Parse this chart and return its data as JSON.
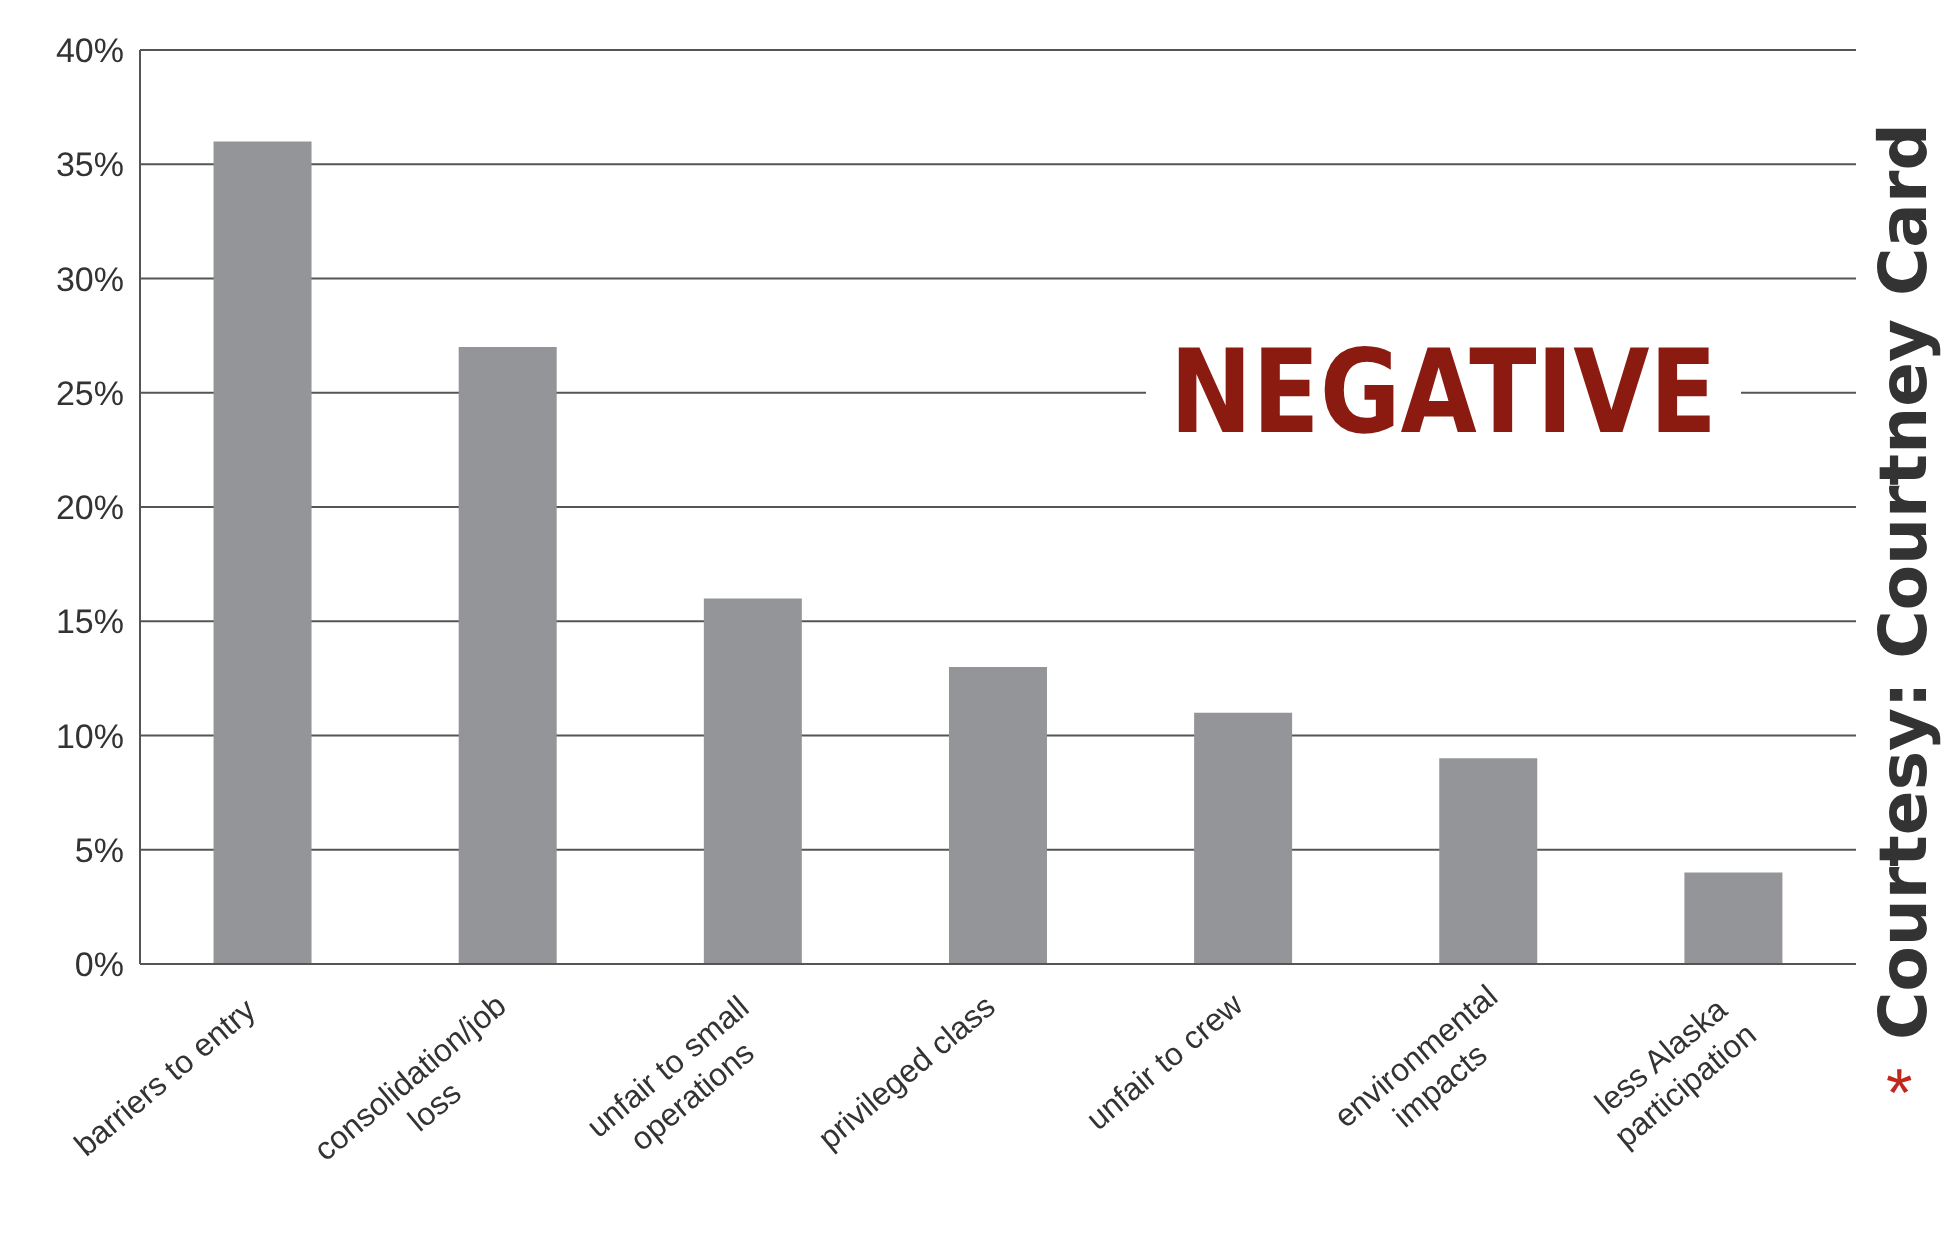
{
  "chart_data": {
    "type": "bar",
    "categories": [
      "barriers to entry",
      "consolidation/job loss",
      "unfair to small operations",
      "privileged class",
      "unfair to crew",
      "environmental impacts",
      "less Alaska participation"
    ],
    "values": [
      36,
      27,
      16,
      13,
      11,
      9,
      4
    ],
    "color": "#939598",
    "ylim": [
      0,
      40
    ],
    "yticks": [
      {
        "value": 0,
        "label": "0%"
      },
      {
        "value": 5,
        "label": "5%"
      },
      {
        "value": 10,
        "label": "10%"
      },
      {
        "value": 15,
        "label": "15%"
      },
      {
        "value": 20,
        "label": "20%"
      },
      {
        "value": 25,
        "label": "25%"
      },
      {
        "value": 30,
        "label": "30%"
      },
      {
        "value": 35,
        "label": "35%"
      },
      {
        "value": 40,
        "label": "40%"
      }
    ],
    "grid": "y",
    "annotations": [
      "NEGATIVE",
      "Courtesy: Courtney Card",
      "*"
    ]
  }
}
